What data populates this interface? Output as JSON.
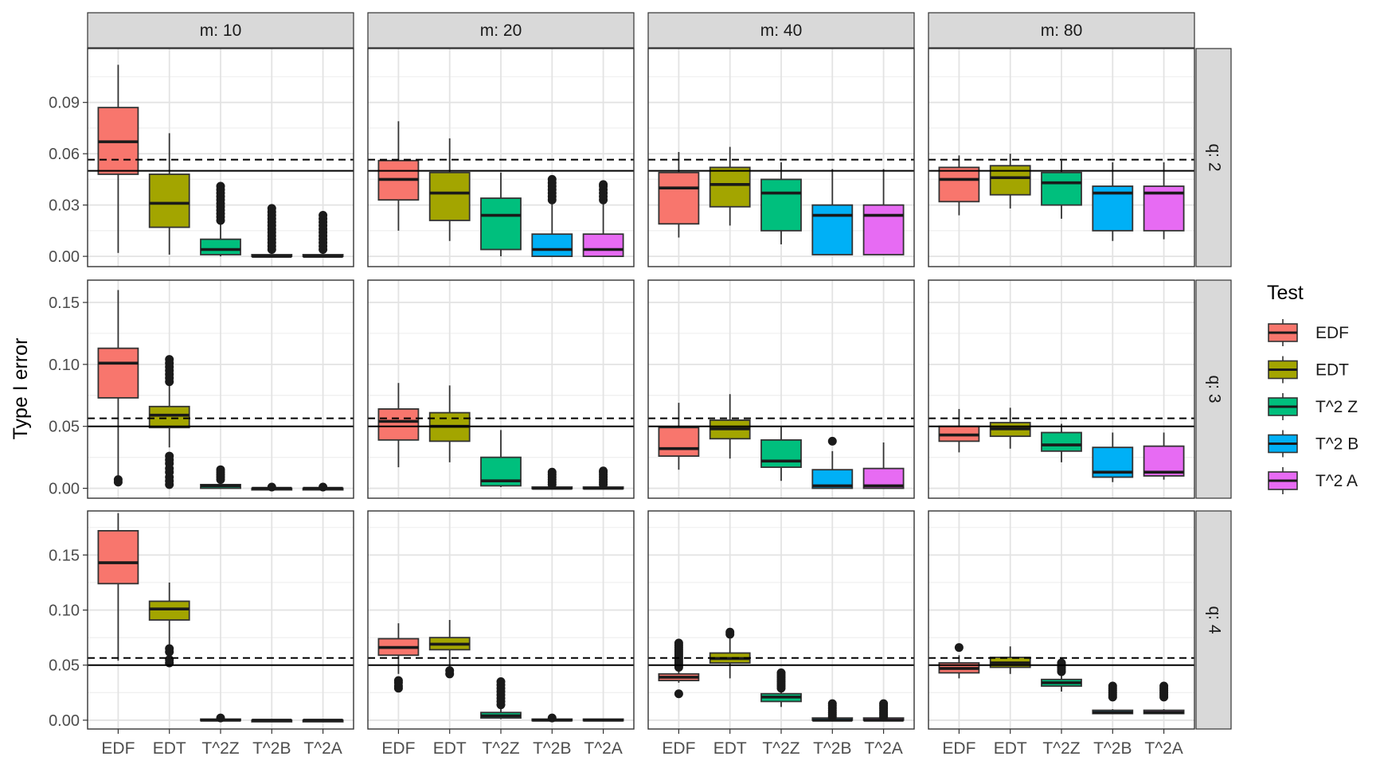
{
  "chart_data": {
    "type": "boxplot",
    "layout": "facet_grid",
    "ylabel": "Type I error",
    "legend": {
      "title": "Test",
      "placement": "right",
      "entries": [
        "EDF",
        "EDT",
        "T^2 Z",
        "T^2 B",
        "T^2 A"
      ]
    },
    "categories": [
      "EDF",
      "EDT",
      "T^2Z",
      "T^2B",
      "T^2A"
    ],
    "series_colors": [
      "#F8766D",
      "#A3A500",
      "#00BF7D",
      "#00B0F6",
      "#E76BF3"
    ],
    "reference_lines": [
      {
        "style": "solid",
        "y": 0.05
      },
      {
        "style": "dashed",
        "y": 0.0565
      }
    ],
    "col_facet_labels": [
      "m: 10",
      "m: 20",
      "m: 40",
      "m: 80"
    ],
    "row_facet_labels": [
      "q: 2",
      "q: 3",
      "q: 4"
    ],
    "rows": [
      {
        "ylim": [
          -0.006,
          0.1215
        ],
        "yticks": [
          0.0,
          0.03,
          0.06,
          0.09
        ],
        "ytick_labels": [
          "0.00",
          "0.03",
          "0.06",
          "0.09"
        ],
        "panels": [
          {
            "boxes": [
              {
                "lw": 0.002,
                "q1": 0.048,
                "med": 0.067,
                "q3": 0.087,
                "uw": 0.112,
                "out": []
              },
              {
                "lw": 0.001,
                "q1": 0.017,
                "med": 0.031,
                "q3": 0.048,
                "uw": 0.072,
                "out": []
              },
              {
                "lw": 0.0,
                "q1": 0.001,
                "med": 0.004,
                "q3": 0.01,
                "uw": 0.019,
                "out": [
                  0.021,
                  0.023,
                  0.025,
                  0.027,
                  0.029,
                  0.031,
                  0.033,
                  0.035,
                  0.037,
                  0.039,
                  0.041
                ]
              },
              {
                "lw": 0.0,
                "q1": 0.0,
                "med": 0.0,
                "q3": 0.001,
                "uw": 0.002,
                "out": [
                  0.004,
                  0.006,
                  0.008,
                  0.01,
                  0.012,
                  0.014,
                  0.016,
                  0.018,
                  0.02,
                  0.022,
                  0.024,
                  0.026,
                  0.028
                ]
              },
              {
                "lw": 0.0,
                "q1": 0.0,
                "med": 0.0,
                "q3": 0.001,
                "uw": 0.002,
                "out": [
                  0.004,
                  0.006,
                  0.008,
                  0.01,
                  0.012,
                  0.014,
                  0.016,
                  0.018,
                  0.02,
                  0.022,
                  0.024
                ]
              }
            ]
          },
          {
            "boxes": [
              {
                "lw": 0.015,
                "q1": 0.033,
                "med": 0.045,
                "q3": 0.056,
                "uw": 0.079,
                "out": []
              },
              {
                "lw": 0.009,
                "q1": 0.021,
                "med": 0.037,
                "q3": 0.049,
                "uw": 0.069,
                "out": []
              },
              {
                "lw": 0.0,
                "q1": 0.004,
                "med": 0.024,
                "q3": 0.034,
                "uw": 0.049,
                "out": []
              },
              {
                "lw": 0.0,
                "q1": 0.0,
                "med": 0.004,
                "q3": 0.013,
                "uw": 0.031,
                "out": [
                  0.033,
                  0.035,
                  0.037,
                  0.039,
                  0.041,
                  0.043,
                  0.045
                ]
              },
              {
                "lw": 0.0,
                "q1": 0.0,
                "med": 0.004,
                "q3": 0.013,
                "uw": 0.031,
                "out": [
                  0.033,
                  0.035,
                  0.037,
                  0.039,
                  0.041,
                  0.042
                ]
              }
            ]
          },
          {
            "boxes": [
              {
                "lw": 0.011,
                "q1": 0.019,
                "med": 0.04,
                "q3": 0.049,
                "uw": 0.061,
                "out": []
              },
              {
                "lw": 0.018,
                "q1": 0.029,
                "med": 0.042,
                "q3": 0.052,
                "uw": 0.064,
                "out": []
              },
              {
                "lw": 0.007,
                "q1": 0.015,
                "med": 0.037,
                "q3": 0.045,
                "uw": 0.055,
                "out": []
              },
              {
                "lw": 0.001,
                "q1": 0.001,
                "med": 0.024,
                "q3": 0.03,
                "uw": 0.051,
                "out": []
              },
              {
                "lw": 0.001,
                "q1": 0.001,
                "med": 0.024,
                "q3": 0.03,
                "uw": 0.051,
                "out": []
              }
            ]
          },
          {
            "boxes": [
              {
                "lw": 0.024,
                "q1": 0.032,
                "med": 0.045,
                "q3": 0.052,
                "uw": 0.059,
                "out": []
              },
              {
                "lw": 0.028,
                "q1": 0.036,
                "med": 0.046,
                "q3": 0.053,
                "uw": 0.06,
                "out": []
              },
              {
                "lw": 0.022,
                "q1": 0.03,
                "med": 0.043,
                "q3": 0.049,
                "uw": 0.056,
                "out": []
              },
              {
                "lw": 0.009,
                "q1": 0.015,
                "med": 0.037,
                "q3": 0.041,
                "uw": 0.055,
                "out": []
              },
              {
                "lw": 0.01,
                "q1": 0.015,
                "med": 0.037,
                "q3": 0.041,
                "uw": 0.055,
                "out": []
              }
            ]
          }
        ]
      },
      {
        "ylim": [
          -0.008,
          0.168
        ],
        "yticks": [
          0.0,
          0.05,
          0.1,
          0.15
        ],
        "ytick_labels": [
          "0.00",
          "0.05",
          "0.10",
          "0.15"
        ],
        "panels": [
          {
            "boxes": [
              {
                "lw": 0.01,
                "q1": 0.073,
                "med": 0.101,
                "q3": 0.113,
                "uw": 0.16,
                "out": [
                  0.005,
                  0.007
                ]
              },
              {
                "lw": 0.033,
                "q1": 0.049,
                "med": 0.059,
                "q3": 0.066,
                "uw": 0.083,
                "out": [
                  0.003,
                  0.006,
                  0.009,
                  0.013,
                  0.016,
                  0.02,
                  0.023,
                  0.026,
                  0.086,
                  0.089,
                  0.092,
                  0.095,
                  0.098,
                  0.101,
                  0.104
                ]
              },
              {
                "lw": 0.0,
                "q1": 0.0,
                "med": 0.002,
                "q3": 0.003,
                "uw": 0.005,
                "out": [
                  0.007,
                  0.009,
                  0.011,
                  0.013,
                  0.015
                ]
              },
              {
                "lw": 0.0,
                "q1": 0.0,
                "med": 0.0,
                "q3": 0.0,
                "uw": 0.0,
                "out": [
                  0.001
                ]
              },
              {
                "lw": 0.0,
                "q1": 0.0,
                "med": 0.0,
                "q3": 0.0,
                "uw": 0.0,
                "out": [
                  0.001
                ]
              }
            ]
          },
          {
            "boxes": [
              {
                "lw": 0.017,
                "q1": 0.039,
                "med": 0.054,
                "q3": 0.064,
                "uw": 0.085,
                "out": []
              },
              {
                "lw": 0.021,
                "q1": 0.038,
                "med": 0.05,
                "q3": 0.061,
                "uw": 0.083,
                "out": []
              },
              {
                "lw": 0.001,
                "q1": 0.002,
                "med": 0.006,
                "q3": 0.025,
                "uw": 0.047,
                "out": []
              },
              {
                "lw": 0.0,
                "q1": 0.0,
                "med": 0.0,
                "q3": 0.001,
                "uw": 0.002,
                "out": [
                  0.003,
                  0.005,
                  0.007,
                  0.009,
                  0.011,
                  0.013
                ]
              },
              {
                "lw": 0.0,
                "q1": 0.0,
                "med": 0.0,
                "q3": 0.001,
                "uw": 0.002,
                "out": [
                  0.003,
                  0.005,
                  0.007,
                  0.009,
                  0.011,
                  0.013,
                  0.014
                ]
              }
            ]
          },
          {
            "boxes": [
              {
                "lw": 0.015,
                "q1": 0.026,
                "med": 0.032,
                "q3": 0.049,
                "uw": 0.069,
                "out": []
              },
              {
                "lw": 0.024,
                "q1": 0.04,
                "med": 0.048,
                "q3": 0.055,
                "uw": 0.076,
                "out": []
              },
              {
                "lw": 0.006,
                "q1": 0.017,
                "med": 0.022,
                "q3": 0.039,
                "uw": 0.05,
                "out": []
              },
              {
                "lw": 0.0,
                "q1": 0.0,
                "med": 0.002,
                "q3": 0.015,
                "uw": 0.03,
                "out": [
                  0.038
                ]
              },
              {
                "lw": 0.0,
                "q1": 0.0,
                "med": 0.002,
                "q3": 0.016,
                "uw": 0.037,
                "out": []
              }
            ]
          },
          {
            "boxes": [
              {
                "lw": 0.029,
                "q1": 0.038,
                "med": 0.043,
                "q3": 0.05,
                "uw": 0.064,
                "out": []
              },
              {
                "lw": 0.032,
                "q1": 0.042,
                "med": 0.048,
                "q3": 0.053,
                "uw": 0.065,
                "out": []
              },
              {
                "lw": 0.021,
                "q1": 0.03,
                "med": 0.035,
                "q3": 0.045,
                "uw": 0.052,
                "out": []
              },
              {
                "lw": 0.005,
                "q1": 0.009,
                "med": 0.013,
                "q3": 0.033,
                "uw": 0.045,
                "out": []
              },
              {
                "lw": 0.007,
                "q1": 0.01,
                "med": 0.013,
                "q3": 0.034,
                "uw": 0.045,
                "out": []
              }
            ]
          }
        ]
      },
      {
        "ylim": [
          -0.008,
          0.19
        ],
        "yticks": [
          0.0,
          0.05,
          0.1,
          0.15
        ],
        "ytick_labels": [
          "0.00",
          "0.05",
          "0.10",
          "0.15"
        ],
        "panels": [
          {
            "boxes": [
              {
                "lw": 0.054,
                "q1": 0.124,
                "med": 0.143,
                "q3": 0.172,
                "uw": 0.188,
                "out": []
              },
              {
                "lw": 0.068,
                "q1": 0.091,
                "med": 0.101,
                "q3": 0.108,
                "uw": 0.125,
                "out": [
                  0.052,
                  0.055,
                  0.062,
                  0.065
                ]
              },
              {
                "lw": 0.0,
                "q1": 0.0,
                "med": 0.0,
                "q3": 0.001,
                "uw": 0.001,
                "out": [
                  0.002
                ]
              },
              {
                "lw": 0.0,
                "q1": 0.0,
                "med": 0.0,
                "q3": 0.0,
                "uw": 0.0,
                "out": []
              },
              {
                "lw": 0.0,
                "q1": 0.0,
                "med": 0.0,
                "q3": 0.0,
                "uw": 0.0,
                "out": []
              }
            ]
          },
          {
            "boxes": [
              {
                "lw": 0.042,
                "q1": 0.059,
                "med": 0.066,
                "q3": 0.074,
                "uw": 0.088,
                "out": [
                  0.029,
                  0.031,
                  0.034,
                  0.036
                ]
              },
              {
                "lw": 0.048,
                "q1": 0.064,
                "med": 0.069,
                "q3": 0.075,
                "uw": 0.091,
                "out": [
                  0.042,
                  0.045
                ]
              },
              {
                "lw": 0.001,
                "q1": 0.002,
                "med": 0.004,
                "q3": 0.007,
                "uw": 0.012,
                "out": [
                  0.014,
                  0.017,
                  0.02,
                  0.023,
                  0.026,
                  0.029,
                  0.032,
                  0.035
                ]
              },
              {
                "lw": 0.0,
                "q1": 0.0,
                "med": 0.0,
                "q3": 0.001,
                "uw": 0.001,
                "out": [
                  0.002
                ]
              },
              {
                "lw": 0.0,
                "q1": 0.0,
                "med": 0.0,
                "q3": 0.001,
                "uw": 0.001,
                "out": []
              }
            ]
          },
          {
            "boxes": [
              {
                "lw": 0.034,
                "q1": 0.036,
                "med": 0.039,
                "q3": 0.042,
                "uw": 0.046,
                "out": [
                  0.024,
                  0.048,
                  0.05,
                  0.052,
                  0.054,
                  0.056,
                  0.058,
                  0.06,
                  0.062,
                  0.064,
                  0.066,
                  0.068,
                  0.07
                ]
              },
              {
                "lw": 0.038,
                "q1": 0.052,
                "med": 0.056,
                "q3": 0.061,
                "uw": 0.074,
                "out": [
                  0.078,
                  0.08
                ]
              },
              {
                "lw": 0.012,
                "q1": 0.017,
                "med": 0.021,
                "q3": 0.024,
                "uw": 0.028,
                "out": [
                  0.029,
                  0.031,
                  0.033,
                  0.035,
                  0.037,
                  0.039,
                  0.041,
                  0.043
                ]
              },
              {
                "lw": 0.0,
                "q1": 0.0,
                "med": 0.0,
                "q3": 0.002,
                "uw": 0.002,
                "out": [
                  0.003,
                  0.005,
                  0.007,
                  0.009,
                  0.011,
                  0.013,
                  0.015
                ]
              },
              {
                "lw": 0.0,
                "q1": 0.0,
                "med": 0.0,
                "q3": 0.002,
                "uw": 0.002,
                "out": [
                  0.003,
                  0.005,
                  0.007,
                  0.009,
                  0.011,
                  0.013,
                  0.015
                ]
              }
            ]
          },
          {
            "boxes": [
              {
                "lw": 0.038,
                "q1": 0.043,
                "med": 0.047,
                "q3": 0.052,
                "uw": 0.059,
                "out": [
                  0.066
                ]
              },
              {
                "lw": 0.042,
                "q1": 0.048,
                "med": 0.052,
                "q3": 0.057,
                "uw": 0.067,
                "out": []
              },
              {
                "lw": 0.026,
                "q1": 0.031,
                "med": 0.034,
                "q3": 0.037,
                "uw": 0.042,
                "out": [
                  0.044,
                  0.046,
                  0.048,
                  0.05,
                  0.052
                ]
              },
              {
                "lw": 0.006,
                "q1": 0.006,
                "med": 0.007,
                "q3": 0.009,
                "uw": 0.01,
                "out": [
                  0.021,
                  0.023,
                  0.025,
                  0.027,
                  0.029,
                  0.031
                ]
              },
              {
                "lw": 0.006,
                "q1": 0.006,
                "med": 0.007,
                "q3": 0.009,
                "uw": 0.01,
                "out": [
                  0.021,
                  0.023,
                  0.025,
                  0.027,
                  0.029,
                  0.031
                ]
              }
            ]
          }
        ]
      }
    ]
  }
}
